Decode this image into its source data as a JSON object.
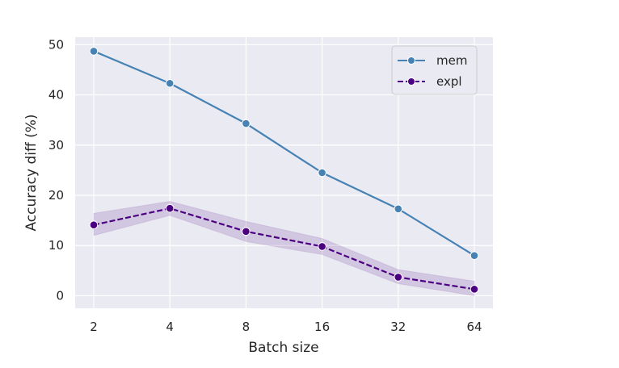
{
  "chart_data": {
    "type": "line",
    "title": "",
    "xlabel": "Batch size",
    "ylabel": "Accuracy diff (%)",
    "categories": [
      "2",
      "4",
      "8",
      "16",
      "32",
      "64"
    ],
    "ylim": [
      -2.5,
      51.5
    ],
    "yticks": [
      0,
      10,
      20,
      30,
      40,
      50
    ],
    "grid": true,
    "background": "#eaeaf2",
    "legend_position": "upper right",
    "series": [
      {
        "name": "mem",
        "color": "#4682b4",
        "linestyle": "solid",
        "marker": "circle",
        "values": [
          48.7,
          42.3,
          34.3,
          24.5,
          17.3,
          8.0
        ]
      },
      {
        "name": "expl",
        "color": "#4b0082",
        "linestyle": "dashed",
        "marker": "circle",
        "values": [
          14.1,
          17.4,
          12.8,
          9.8,
          3.7,
          1.3
        ],
        "ci_lower": [
          12.0,
          16.0,
          10.8,
          8.2,
          2.4,
          0.0
        ],
        "ci_upper": [
          16.4,
          18.8,
          14.8,
          11.4,
          5.2,
          2.9
        ]
      }
    ]
  }
}
